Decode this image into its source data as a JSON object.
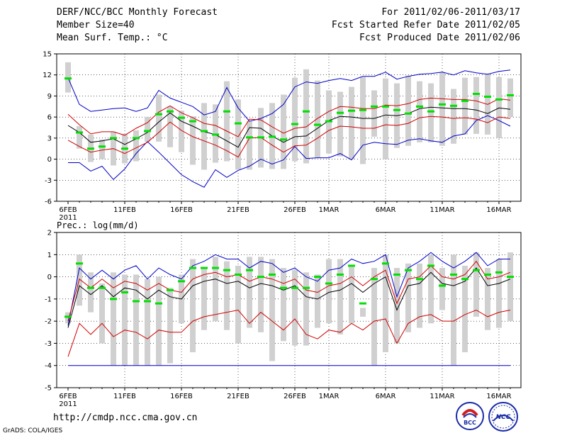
{
  "header": {
    "title": "DERF/NCC/BCC Monthly Forecast",
    "member_size": "Member Size=40",
    "variable": "Mean Surf. Temp.: °C",
    "period": "For 2011/02/06-2011/03/17",
    "refer_date": "Fcst Started Refer Date 2011/02/05",
    "produced_date": "Fcst Produced Date 2011/02/06"
  },
  "footer": {
    "url": "http://cmdp.ncc.cma.gov.cn",
    "credit": "GrADS: COLA/IGES",
    "logo_left_text": "BCC",
    "logo_right_text": "NCC"
  },
  "colors": {
    "box": "#d0d0d0",
    "median": "#00e000",
    "mean": "#000000",
    "inner_band": "#d00000",
    "outer_band": "#0000c8",
    "grid": "#000000"
  },
  "chart_data": [
    {
      "type": "line",
      "title": "Mean Surf. Temp.: °C",
      "ylabel": "°C",
      "ylim": [
        -6,
        15
      ],
      "yticks": [
        -6,
        -3,
        0,
        3,
        6,
        9,
        12,
        15
      ],
      "xtick_labels": [
        "6FEB",
        "11FEB",
        "16FEB",
        "21FEB",
        "26FEB",
        "1MAR",
        "6MAR",
        "11MAR",
        "16MAR"
      ],
      "xtick_index": [
        0,
        5,
        10,
        15,
        20,
        23,
        28,
        33,
        38
      ],
      "year_label": "2011",
      "days": 40,
      "series": [
        {
          "name": "mean",
          "values": [
            4.8,
            3.8,
            2.4,
            2.6,
            2.9,
            2.1,
            2.9,
            3.8,
            5.3,
            6.6,
            5.4,
            4.7,
            3.9,
            3.5,
            2.6,
            1.7,
            4.5,
            4.4,
            3.3,
            2.4,
            3.2,
            3.3,
            4.4,
            5.5,
            6.1,
            6.0,
            5.8,
            5.8,
            6.3,
            6.2,
            6.5,
            7.2,
            7.4,
            7.3,
            7.2,
            7.2,
            7.0,
            6.5,
            7.3,
            7.1
          ]
        },
        {
          "name": "upper_red",
          "values": [
            6.4,
            4.9,
            3.6,
            3.9,
            3.9,
            3.4,
            4.4,
            5.2,
            6.7,
            7.6,
            6.6,
            5.9,
            5.1,
            4.8,
            4.0,
            3.2,
            5.7,
            5.6,
            4.6,
            3.7,
            4.4,
            4.6,
            5.8,
            6.8,
            7.5,
            7.4,
            7.2,
            7.2,
            7.7,
            7.6,
            7.9,
            8.5,
            8.7,
            8.6,
            8.5,
            8.5,
            8.3,
            7.8,
            8.6,
            8.4
          ]
        },
        {
          "name": "lower_red",
          "values": [
            2.7,
            1.8,
            1.0,
            1.3,
            1.5,
            0.8,
            1.6,
            2.4,
            3.8,
            5.3,
            4.1,
            3.2,
            2.6,
            2.0,
            1.2,
            0.3,
            3.0,
            3.1,
            2.0,
            1.0,
            1.9,
            2.0,
            3.0,
            4.1,
            4.7,
            4.6,
            4.4,
            4.4,
            4.9,
            4.8,
            5.1,
            5.9,
            6.1,
            6.0,
            5.8,
            5.9,
            5.7,
            5.2,
            6.0,
            5.8
          ]
        },
        {
          "name": "upper_blue",
          "values": [
            11.6,
            7.8,
            6.8,
            7.0,
            7.2,
            7.3,
            6.8,
            7.3,
            9.8,
            8.7,
            8.1,
            7.5,
            6.3,
            6.8,
            10.2,
            7.3,
            5.4,
            5.8,
            6.5,
            7.8,
            10.3,
            11.0,
            10.8,
            11.2,
            11.5,
            11.2,
            11.8,
            11.8,
            12.4,
            11.4,
            11.8,
            12.1,
            12.2,
            12.4,
            12.0,
            12.6,
            12.3,
            12.1,
            12.5,
            12.7
          ]
        },
        {
          "name": "lower_blue",
          "values": [
            -0.5,
            -0.5,
            -1.7,
            -1.0,
            -2.9,
            -1.4,
            0.8,
            2.5,
            1.0,
            -0.6,
            -2.2,
            -3.2,
            -4.0,
            -1.5,
            -2.6,
            -1.6,
            -1.0,
            0.0,
            -0.7,
            -0.1,
            1.8,
            0.1,
            0.2,
            0.2,
            0.8,
            -0.1,
            2.0,
            2.4,
            2.2,
            2.1,
            2.7,
            2.9,
            2.6,
            2.4,
            3.3,
            3.6,
            5.5,
            6.2,
            5.5,
            4.7
          ]
        },
        {
          "name": "median",
          "values": [
            11.5,
            3.8,
            1.5,
            1.8,
            3.0,
            1.5,
            3.0,
            4.0,
            6.4,
            6.8,
            5.9,
            5.4,
            4.0,
            3.5,
            6.8,
            5.1,
            3.1,
            3.1,
            3.2,
            2.8,
            5.0,
            6.8,
            4.9,
            5.4,
            6.6,
            6.9,
            7.0,
            7.5,
            7.5,
            7.0,
            6.5,
            7.5,
            6.8,
            7.8,
            7.6,
            8.3,
            9.3,
            8.9,
            8.5,
            9.1
          ]
        },
        {
          "name": "box_low",
          "values": [
            9.5,
            1.5,
            -0.4,
            0.0,
            -0.9,
            -0.6,
            -0.3,
            2.5,
            2.5,
            1.7,
            1.0,
            -0.8,
            -1.5,
            -0.5,
            -0.3,
            -1.5,
            -1.5,
            -1.2,
            -1.4,
            -1.4,
            -0.3,
            -0.6,
            0.2,
            0.8,
            0.4,
            0.0,
            -0.7,
            3.2,
            0.0,
            1.6,
            1.9,
            2.4,
            2.4,
            1.9,
            2.2,
            3.5,
            3.6,
            3.5,
            3.0,
            6.0
          ]
        },
        {
          "name": "box_high",
          "values": [
            13.8,
            4.7,
            3.5,
            2.8,
            3.9,
            3.6,
            4.1,
            6.0,
            9.2,
            7.5,
            6.9,
            6.1,
            8.0,
            7.8,
            11.1,
            8.5,
            5.4,
            7.3,
            8.0,
            9.2,
            11.6,
            12.8,
            11.2,
            9.8,
            9.6,
            10.3,
            11.7,
            9.8,
            11.5,
            10.8,
            11.9,
            11.1,
            10.8,
            12.4,
            10.0,
            11.6,
            11.7,
            12.2,
            11.7,
            11.5
          ]
        }
      ]
    },
    {
      "type": "line",
      "title": "Prec.: log(mm/d)",
      "ylabel": "log(mm/d)",
      "ylim": [
        -5,
        2
      ],
      "yticks": [
        -5,
        -4,
        -3,
        -2,
        -1,
        0,
        1,
        2
      ],
      "xtick_labels": [
        "6FEB",
        "11FEB",
        "16FEB",
        "21FEB",
        "26FEB",
        "1MAR",
        "6MAR",
        "11MAR",
        "16MAR"
      ],
      "xtick_index": [
        0,
        5,
        10,
        15,
        20,
        23,
        28,
        33,
        38
      ],
      "year_label": "2011",
      "days": 40,
      "series": [
        {
          "name": "mean",
          "values": [
            -2.3,
            -0.4,
            -0.8,
            -0.4,
            -0.9,
            -0.5,
            -0.6,
            -1.0,
            -0.6,
            -0.9,
            -1.0,
            -0.4,
            -0.2,
            -0.1,
            -0.3,
            -0.2,
            -0.5,
            -0.3,
            -0.4,
            -0.6,
            -0.4,
            -0.9,
            -1.0,
            -0.7,
            -0.6,
            -0.3,
            -0.7,
            -0.3,
            0.0,
            -1.5,
            -0.4,
            -0.3,
            0.2,
            -0.3,
            -0.4,
            -0.2,
            0.4,
            -0.4,
            -0.3,
            -0.1
          ]
        },
        {
          "name": "upper_red",
          "values": [
            -2.0,
            -0.1,
            -0.5,
            -0.1,
            -0.5,
            -0.2,
            -0.3,
            -0.6,
            -0.3,
            -0.6,
            -0.7,
            -0.1,
            0.1,
            0.2,
            0.0,
            0.1,
            -0.2,
            0.0,
            -0.1,
            -0.3,
            -0.1,
            -0.6,
            -0.7,
            -0.4,
            -0.3,
            0.0,
            -0.4,
            0.0,
            0.3,
            -1.2,
            -0.1,
            0.0,
            0.5,
            0.0,
            -0.1,
            0.1,
            0.7,
            -0.1,
            0.0,
            0.2
          ]
        },
        {
          "name": "lower_red",
          "values": [
            -3.6,
            -2.1,
            -2.6,
            -2.1,
            -2.7,
            -2.4,
            -2.5,
            -2.8,
            -2.4,
            -2.5,
            -2.5,
            -2.0,
            -1.8,
            -1.7,
            -1.6,
            -1.5,
            -2.1,
            -1.6,
            -2.0,
            -2.4,
            -1.9,
            -2.6,
            -2.8,
            -2.4,
            -2.5,
            -2.1,
            -2.4,
            -2.0,
            -1.9,
            -3.0,
            -2.1,
            -1.8,
            -1.7,
            -2.0,
            -2.0,
            -1.7,
            -1.5,
            -1.8,
            -1.6,
            -1.5
          ]
        },
        {
          "name": "upper_blue",
          "values": [
            -2.2,
            0.4,
            -0.1,
            0.3,
            -0.1,
            0.3,
            0.5,
            -0.1,
            0.4,
            0.1,
            -0.1,
            0.5,
            0.7,
            1.0,
            0.8,
            0.8,
            0.4,
            0.7,
            0.6,
            0.2,
            0.4,
            0.0,
            -0.2,
            0.3,
            0.4,
            0.8,
            0.6,
            0.7,
            1.0,
            -0.9,
            0.4,
            0.7,
            1.1,
            0.7,
            0.4,
            0.7,
            1.1,
            0.5,
            0.8,
            0.8
          ]
        },
        {
          "name": "lower_blue",
          "values": [
            -4.0,
            -4.0,
            -4.0,
            -4.0,
            -4.0,
            -4.0,
            -4.0,
            -4.0,
            -4.0,
            -4.0,
            -4.0,
            -4.0,
            -4.0,
            -4.0,
            -4.0,
            -4.0,
            -4.0,
            -4.0,
            -4.0,
            -4.0,
            -4.0,
            -4.0,
            -4.0,
            -4.0,
            -4.0,
            -4.0,
            -4.0,
            -4.0,
            -4.0,
            -4.0,
            -4.0,
            -4.0,
            -4.0,
            -4.0,
            -4.0,
            -4.0,
            -4.0,
            -4.0,
            -4.0,
            -4.0
          ]
        },
        {
          "name": "median",
          "values": [
            -1.8,
            0.6,
            -0.5,
            -0.5,
            -1.0,
            -0.7,
            -1.1,
            -1.1,
            -1.2,
            -0.6,
            -0.2,
            0.4,
            0.4,
            0.4,
            0.3,
            0.1,
            0.3,
            0.0,
            0.1,
            -0.5,
            -0.5,
            -0.5,
            0.0,
            -0.3,
            0.1,
            0.5,
            -1.2,
            -0.1,
            0.6,
            0.1,
            0.3,
            -0.1,
            0.5,
            -0.4,
            0.1,
            -0.1,
            0.3,
            0.1,
            0.2,
            0.0
          ]
        },
        {
          "name": "box_low",
          "values": [
            -2.1,
            -1.3,
            -1.6,
            -3.0,
            -4.0,
            -4.0,
            -4.0,
            -4.0,
            -4.0,
            -3.9,
            -2.1,
            -3.4,
            -2.4,
            -2.0,
            -2.4,
            -3.0,
            -2.3,
            -2.5,
            -3.8,
            -2.9,
            -3.1,
            -3.1,
            -2.3,
            -2.1,
            -2.6,
            -2.1,
            -1.8,
            -4.0,
            -3.4,
            -3.0,
            -2.5,
            -2.3,
            -2.1,
            -1.5,
            -4.0,
            -3.4,
            -1.8,
            -2.4,
            -2.3,
            -2.0
          ]
        },
        {
          "name": "box_high",
          "values": [
            -1.6,
            1.0,
            0.2,
            -0.3,
            0.2,
            0.1,
            0.1,
            -0.1,
            0.0,
            -0.5,
            0.1,
            0.8,
            0.4,
            0.9,
            0.7,
            0.5,
            0.9,
            0.9,
            0.8,
            0.4,
            0.3,
            0.2,
            0.1,
            0.8,
            0.8,
            0.5,
            -1.4,
            0.4,
            1.0,
            0.4,
            0.6,
            0.6,
            1.0,
            0.4,
            1.0,
            0.5,
            1.1,
            0.4,
            0.8,
            1.1
          ]
        }
      ]
    }
  ]
}
